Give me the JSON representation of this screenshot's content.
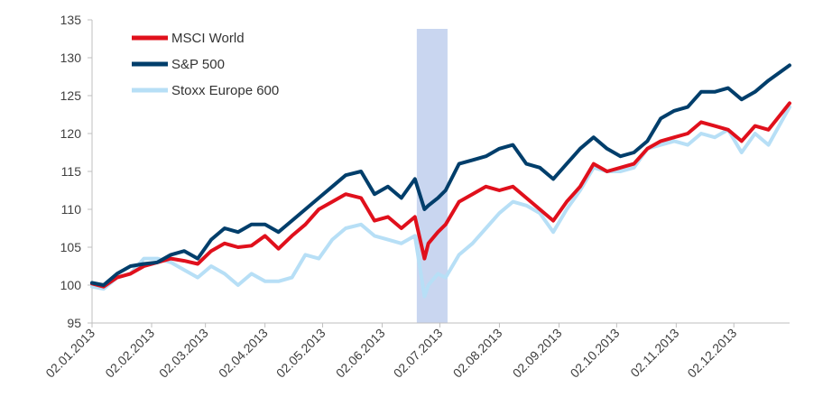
{
  "chart_data": {
    "type": "line",
    "title": "",
    "xlabel": "",
    "ylabel": "",
    "ylim": [
      95,
      135
    ],
    "yticks": [
      95,
      100,
      105,
      110,
      115,
      120,
      125,
      130,
      135
    ],
    "xticks": [
      "02.01.2013",
      "02.02.2013",
      "02.03.2013",
      "02.04.2013",
      "02.05.2013",
      "02.06.2013",
      "02.07.2013",
      "02.08.2013",
      "02.09.2013",
      "02.10.2013",
      "02.11.2013",
      "02.12.2013"
    ],
    "xlim": [
      "02.01.2013",
      "31.12.2013"
    ],
    "grid": false,
    "legend": "top-left",
    "shaded_region": {
      "from": "20.06.2013",
      "to": "06.07.2013",
      "color": "#c9d6f0"
    },
    "series": [
      {
        "name": "MSCI World",
        "color": "#e0101c",
        "x": [
          "02.01.2013",
          "08.01.2013",
          "15.01.2013",
          "22.01.2013",
          "29.01.2013",
          "05.02.2013",
          "12.02.2013",
          "19.02.2013",
          "26.02.2013",
          "05.03.2013",
          "12.03.2013",
          "19.03.2013",
          "26.03.2013",
          "02.04.2013",
          "09.04.2013",
          "16.04.2013",
          "23.04.2013",
          "30.04.2013",
          "07.05.2013",
          "14.05.2013",
          "22.05.2013",
          "29.05.2013",
          "05.06.2013",
          "12.06.2013",
          "19.06.2013",
          "24.06.2013",
          "26.06.2013",
          "01.07.2013",
          "05.07.2013",
          "12.07.2013",
          "19.07.2013",
          "26.07.2013",
          "02.08.2013",
          "09.08.2013",
          "16.08.2013",
          "23.08.2013",
          "30.08.2013",
          "06.09.2013",
          "13.09.2013",
          "20.09.2013",
          "27.09.2013",
          "04.10.2013",
          "11.10.2013",
          "18.10.2013",
          "25.10.2013",
          "01.11.2013",
          "08.11.2013",
          "15.11.2013",
          "22.11.2013",
          "29.11.2013",
          "06.12.2013",
          "13.12.2013",
          "20.12.2013",
          "31.12.2013"
        ],
        "values": [
          100.2,
          99.8,
          101.0,
          101.5,
          102.5,
          103.0,
          103.5,
          103.2,
          102.8,
          104.5,
          105.5,
          105.0,
          105.2,
          106.5,
          104.8,
          106.5,
          108.0,
          110.0,
          111.0,
          112.0,
          111.5,
          108.5,
          109.0,
          107.5,
          109.0,
          103.5,
          105.5,
          107.0,
          108.0,
          111.0,
          112.0,
          113.0,
          112.5,
          113.0,
          111.5,
          110.0,
          108.5,
          111.0,
          113.0,
          116.0,
          115.0,
          115.5,
          116.0,
          118.0,
          119.0,
          119.5,
          120.0,
          121.5,
          121.0,
          120.5,
          119.0,
          121.0,
          120.5,
          124.0
        ]
      },
      {
        "name": "S&P 500",
        "color": "#003e6b",
        "x": [
          "02.01.2013",
          "08.01.2013",
          "15.01.2013",
          "22.01.2013",
          "29.01.2013",
          "05.02.2013",
          "12.02.2013",
          "19.02.2013",
          "26.02.2013",
          "05.03.2013",
          "12.03.2013",
          "19.03.2013",
          "26.03.2013",
          "02.04.2013",
          "09.04.2013",
          "16.04.2013",
          "23.04.2013",
          "30.04.2013",
          "07.05.2013",
          "14.05.2013",
          "22.05.2013",
          "29.05.2013",
          "05.06.2013",
          "12.06.2013",
          "19.06.2013",
          "24.06.2013",
          "26.06.2013",
          "01.07.2013",
          "05.07.2013",
          "12.07.2013",
          "19.07.2013",
          "26.07.2013",
          "02.08.2013",
          "09.08.2013",
          "16.08.2013",
          "23.08.2013",
          "30.08.2013",
          "06.09.2013",
          "13.09.2013",
          "20.09.2013",
          "27.09.2013",
          "04.10.2013",
          "11.10.2013",
          "18.10.2013",
          "25.10.2013",
          "01.11.2013",
          "08.11.2013",
          "15.11.2013",
          "22.11.2013",
          "29.11.2013",
          "06.12.2013",
          "13.12.2013",
          "20.12.2013",
          "31.12.2013"
        ],
        "values": [
          100.3,
          100.0,
          101.5,
          102.5,
          102.8,
          103.0,
          104.0,
          104.5,
          103.5,
          106.0,
          107.5,
          107.0,
          108.0,
          108.0,
          107.0,
          108.5,
          110.0,
          111.5,
          113.0,
          114.5,
          115.0,
          112.0,
          113.0,
          111.5,
          114.0,
          110.0,
          110.5,
          111.5,
          112.5,
          116.0,
          116.5,
          117.0,
          118.0,
          118.5,
          116.0,
          115.5,
          114.0,
          116.0,
          118.0,
          119.5,
          118.0,
          117.0,
          117.5,
          119.0,
          122.0,
          123.0,
          123.5,
          125.5,
          125.5,
          126.0,
          124.5,
          125.5,
          127.0,
          129.0
        ]
      },
      {
        "name": "Stoxx Europe 600",
        "color": "#b7dff6",
        "x": [
          "02.01.2013",
          "08.01.2013",
          "15.01.2013",
          "22.01.2013",
          "29.01.2013",
          "05.02.2013",
          "12.02.2013",
          "19.02.2013",
          "26.02.2013",
          "05.03.2013",
          "12.03.2013",
          "19.03.2013",
          "26.03.2013",
          "02.04.2013",
          "09.04.2013",
          "16.04.2013",
          "23.04.2013",
          "30.04.2013",
          "07.05.2013",
          "14.05.2013",
          "22.05.2013",
          "29.05.2013",
          "05.06.2013",
          "12.06.2013",
          "19.06.2013",
          "24.06.2013",
          "26.06.2013",
          "01.07.2013",
          "05.07.2013",
          "12.07.2013",
          "19.07.2013",
          "26.07.2013",
          "02.08.2013",
          "09.08.2013",
          "16.08.2013",
          "23.08.2013",
          "30.08.2013",
          "06.09.2013",
          "13.09.2013",
          "20.09.2013",
          "27.09.2013",
          "04.10.2013",
          "11.10.2013",
          "18.10.2013",
          "25.10.2013",
          "01.11.2013",
          "08.11.2013",
          "15.11.2013",
          "22.11.2013",
          "29.11.2013",
          "06.12.2013",
          "13.12.2013",
          "20.12.2013",
          "31.12.2013"
        ],
        "values": [
          99.8,
          99.5,
          101.0,
          101.5,
          103.5,
          103.5,
          103.0,
          102.0,
          101.0,
          102.5,
          101.5,
          100.0,
          101.5,
          100.5,
          100.5,
          101.0,
          104.0,
          103.5,
          106.0,
          107.5,
          108.0,
          106.5,
          106.0,
          105.5,
          106.5,
          98.5,
          100.0,
          101.5,
          101.0,
          104.0,
          105.5,
          107.5,
          109.5,
          111.0,
          110.5,
          109.5,
          107.0,
          110.0,
          112.5,
          115.5,
          115.0,
          115.0,
          115.5,
          118.0,
          118.5,
          119.0,
          118.5,
          120.0,
          119.5,
          120.5,
          117.5,
          120.0,
          118.5,
          123.5
        ]
      }
    ]
  }
}
